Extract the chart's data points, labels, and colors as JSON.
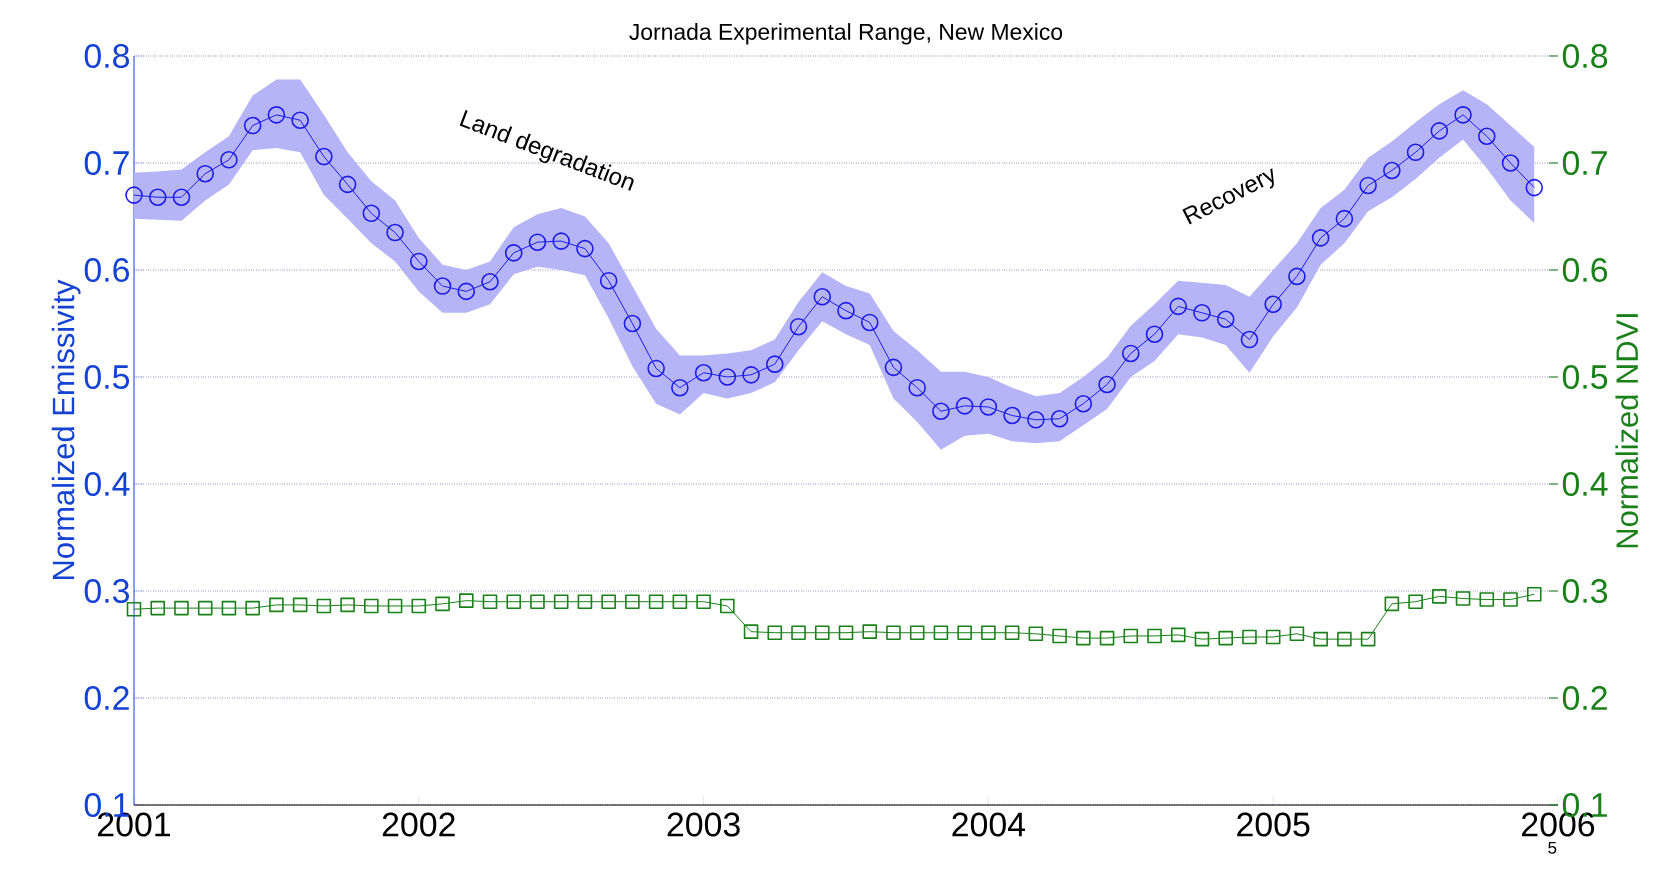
{
  "chart_data": {
    "type": "line",
    "title": "Jornada Experimental Range, New Mexico",
    "ylabel": "Normalized Emissivity",
    "y2label": "Normalized NDVI",
    "annotations": [
      "Land degradation",
      "Recovery",
      "5"
    ],
    "x": [
      "2001-01",
      "2001-02",
      "2001-03",
      "2001-04",
      "2001-05",
      "2001-06",
      "2001-07",
      "2001-08",
      "2001-09",
      "2001-10",
      "2001-11",
      "2001-12",
      "2002-01",
      "2002-02",
      "2002-03",
      "2002-04",
      "2002-05",
      "2002-06",
      "2002-07",
      "2002-08",
      "2002-09",
      "2002-10",
      "2002-11",
      "2002-12",
      "2003-01",
      "2003-02",
      "2003-03",
      "2003-04",
      "2003-05",
      "2003-06",
      "2003-07",
      "2003-08",
      "2003-09",
      "2003-10",
      "2003-11",
      "2003-12",
      "2004-01",
      "2004-02",
      "2004-03",
      "2004-04",
      "2004-05",
      "2004-06",
      "2004-07",
      "2004-08",
      "2004-09",
      "2004-10",
      "2004-11",
      "2004-12",
      "2005-01",
      "2005-02",
      "2005-03",
      "2005-04",
      "2005-05",
      "2005-06",
      "2005-07",
      "2005-08",
      "2005-09",
      "2005-10",
      "2005-11",
      "2005-12"
    ],
    "series": [
      {
        "color": "#1c1ce6",
        "marker": "circle",
        "values": [
          0.67,
          0.668,
          0.668,
          0.69,
          0.703,
          0.735,
          0.745,
          0.74,
          0.706,
          0.68,
          0.653,
          0.635,
          0.608,
          0.585,
          0.58,
          0.589,
          0.616,
          0.626,
          0.627,
          0.62,
          0.59,
          0.55,
          0.508,
          0.49,
          0.504,
          0.5,
          0.502,
          0.512,
          0.547,
          0.575,
          0.562,
          0.551,
          0.509,
          0.49,
          0.468,
          0.473,
          0.472,
          0.464,
          0.46,
          0.461,
          0.475,
          0.493,
          0.522,
          0.54,
          0.566,
          0.56,
          0.554,
          0.535,
          0.568,
          0.594,
          0.63,
          0.648,
          0.679,
          0.693,
          0.71,
          0.73,
          0.745,
          0.725,
          0.7,
          0.677
        ],
        "upper": [
          0.691,
          0.692,
          0.694,
          0.71,
          0.725,
          0.763,
          0.778,
          0.778,
          0.745,
          0.71,
          0.683,
          0.665,
          0.63,
          0.605,
          0.6,
          0.608,
          0.64,
          0.652,
          0.658,
          0.65,
          0.625,
          0.585,
          0.545,
          0.52,
          0.52,
          0.522,
          0.525,
          0.535,
          0.57,
          0.598,
          0.585,
          0.578,
          0.543,
          0.525,
          0.505,
          0.505,
          0.5,
          0.49,
          0.482,
          0.485,
          0.5,
          0.518,
          0.548,
          0.568,
          0.59,
          0.588,
          0.586,
          0.575,
          0.6,
          0.625,
          0.658,
          0.675,
          0.705,
          0.72,
          0.738,
          0.755,
          0.768,
          0.755,
          0.735,
          0.715
        ],
        "lower": [
          0.648,
          0.647,
          0.646,
          0.665,
          0.68,
          0.712,
          0.714,
          0.71,
          0.67,
          0.648,
          0.625,
          0.608,
          0.58,
          0.56,
          0.56,
          0.568,
          0.596,
          0.603,
          0.6,
          0.595,
          0.555,
          0.51,
          0.475,
          0.465,
          0.485,
          0.48,
          0.485,
          0.495,
          0.525,
          0.552,
          0.54,
          0.53,
          0.48,
          0.458,
          0.432,
          0.445,
          0.447,
          0.44,
          0.438,
          0.44,
          0.455,
          0.47,
          0.5,
          0.515,
          0.54,
          0.537,
          0.53,
          0.504,
          0.538,
          0.565,
          0.605,
          0.625,
          0.655,
          0.668,
          0.685,
          0.705,
          0.722,
          0.695,
          0.665,
          0.644
        ]
      },
      {
        "color": "#1a801a",
        "marker": "square",
        "axis": "y2",
        "values": [
          0.283,
          0.284,
          0.284,
          0.284,
          0.284,
          0.284,
          0.287,
          0.287,
          0.286,
          0.287,
          0.286,
          0.286,
          0.286,
          0.288,
          0.291,
          0.29,
          0.29,
          0.29,
          0.29,
          0.29,
          0.29,
          0.29,
          0.29,
          0.29,
          0.29,
          0.286,
          0.262,
          0.261,
          0.261,
          0.261,
          0.261,
          0.262,
          0.261,
          0.261,
          0.261,
          0.261,
          0.261,
          0.261,
          0.26,
          0.258,
          0.256,
          0.256,
          0.258,
          0.258,
          0.259,
          0.255,
          0.256,
          0.257,
          0.257,
          0.26,
          0.255,
          0.255,
          0.255,
          0.288,
          0.29,
          0.295,
          0.293,
          0.292,
          0.292,
          0.297
        ]
      }
    ],
    "xlim": [
      "2001",
      "2006"
    ],
    "xticks": [
      "2001",
      "2002",
      "2003",
      "2004",
      "2005",
      "2006"
    ],
    "ylim": [
      0.1,
      0.8
    ],
    "yticks": [
      0.1,
      0.2,
      0.3,
      0.4,
      0.5,
      0.6,
      0.7,
      0.8
    ],
    "y2lim": [
      0.1,
      0.8
    ],
    "y2ticks": [
      0.1,
      0.2,
      0.3,
      0.4,
      0.5,
      0.6,
      0.7,
      0.8
    ],
    "grid": "y",
    "line_style": "solid"
  }
}
